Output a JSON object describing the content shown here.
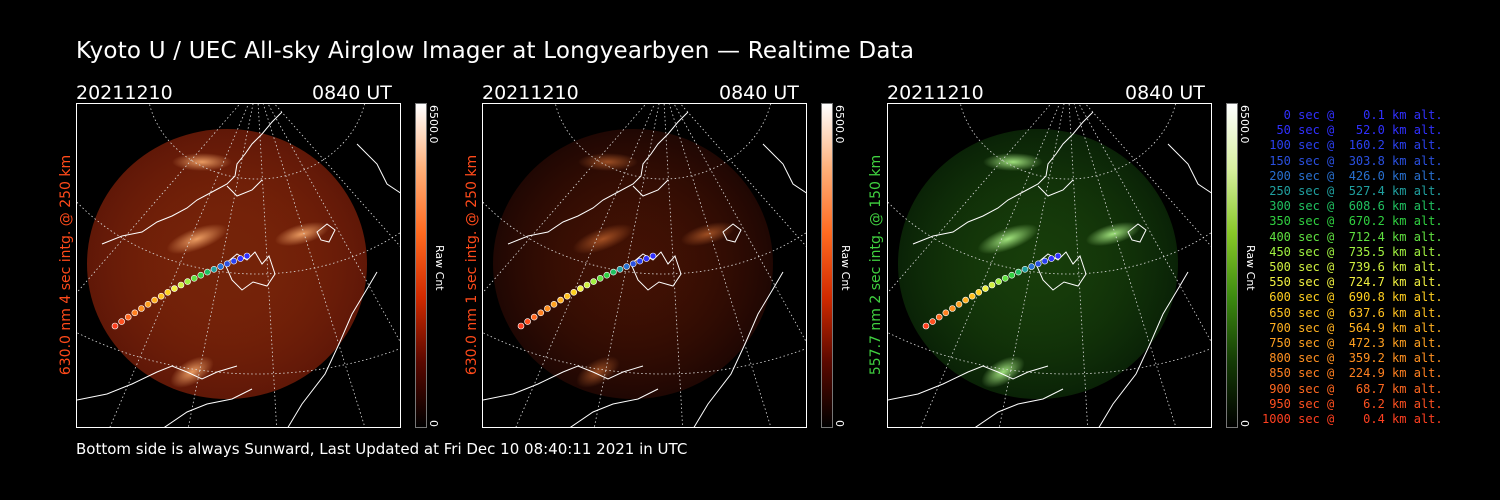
{
  "title": "Kyoto U / UEC All-sky Airglow Imager at Longyearbyen — Realtime Data",
  "footer": "Bottom side is always Sunward, Last Updated at Fri Dec 10 08:40:11 2021 in UTC",
  "panels": [
    {
      "date": "20211210",
      "time": "0840 UT",
      "ylabel": "630.0 nm 4 sec intg. @ 250 km",
      "ylabel_color": "#ff4a1a",
      "cbar_max": "6500.0",
      "cbar_min": "0",
      "cbar_label": "Raw Cnt",
      "cbar_colors": [
        "#ffffff",
        "#ffb07a",
        "#ff6a20",
        "#d02a00",
        "#5a0800",
        "#000000"
      ]
    },
    {
      "date": "20211210",
      "time": "0840 UT",
      "ylabel": "630.0 nm 1 sec intg. @ 250 km",
      "ylabel_color": "#ff4a1a",
      "cbar_max": "6500.0",
      "cbar_min": "0",
      "cbar_label": "Raw Cnt",
      "cbar_colors": [
        "#ffffff",
        "#ffb07a",
        "#ff6a20",
        "#d02a00",
        "#5a0800",
        "#000000"
      ]
    },
    {
      "date": "20211210",
      "time": "0840 UT",
      "ylabel": "557.7 nm 2 sec intg. @ 150 km",
      "ylabel_color": "#40d040",
      "cbar_max": "6500.0",
      "cbar_min": "0",
      "cbar_label": "Raw Cnt",
      "cbar_colors": [
        "#ffffff",
        "#d8f0a0",
        "#88c828",
        "#3c8a10",
        "#143a05",
        "#000000"
      ]
    }
  ],
  "legend": [
    {
      "text": "   0 sec @    0.1 km alt.",
      "color": "#3030ff"
    },
    {
      "text": "  50 sec @   52.0 km alt.",
      "color": "#3030ff"
    },
    {
      "text": " 100 sec @  160.2 km alt.",
      "color": "#2a40f0"
    },
    {
      "text": " 150 sec @  303.8 km alt.",
      "color": "#2a50e0"
    },
    {
      "text": " 200 sec @  426.0 km alt.",
      "color": "#2870d0"
    },
    {
      "text": " 250 sec @  527.4 km alt.",
      "color": "#20a0a0"
    },
    {
      "text": " 300 sec @  608.6 km alt.",
      "color": "#20c060"
    },
    {
      "text": " 350 sec @  670.2 km alt.",
      "color": "#30d040"
    },
    {
      "text": " 400 sec @  712.4 km alt.",
      "color": "#60e040"
    },
    {
      "text": " 450 sec @  735.5 km alt.",
      "color": "#a0f040"
    },
    {
      "text": " 500 sec @  739.6 km alt.",
      "color": "#d0f040"
    },
    {
      "text": " 550 sec @  724.7 km alt.",
      "color": "#f0f040"
    },
    {
      "text": " 600 sec @  690.8 km alt.",
      "color": "#ffd020"
    },
    {
      "text": " 650 sec @  637.6 km alt.",
      "color": "#ffc020"
    },
    {
      "text": " 700 sec @  564.9 km alt.",
      "color": "#ffb020"
    },
    {
      "text": " 750 sec @  472.3 km alt.",
      "color": "#ffa020"
    },
    {
      "text": " 800 sec @  359.2 km alt.",
      "color": "#ff9020"
    },
    {
      "text": " 850 sec @  224.9 km alt.",
      "color": "#ff8020"
    },
    {
      "text": " 900 sec @   68.7 km alt.",
      "color": "#ff6820"
    },
    {
      "text": " 950 sec @    6.2 km alt.",
      "color": "#ff5020"
    },
    {
      "text": "1000 sec @    0.4 km alt.",
      "color": "#ff4020"
    }
  ]
}
